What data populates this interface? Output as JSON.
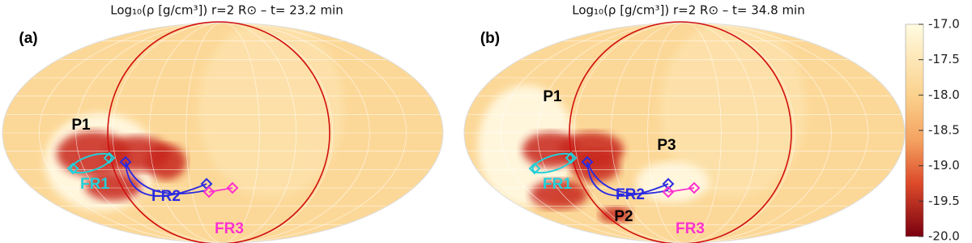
{
  "chart_data": {
    "type": "map",
    "panels": [
      {
        "title": "Log₁₀(ρ [g/cm³]) r=2 R⊙ – t= 23.2 min",
        "label": "(a)",
        "annotations": [
          {
            "text": "P1",
            "color": "#000000"
          },
          {
            "text": "FR1",
            "color": "#22d0d8"
          },
          {
            "text": "FR2",
            "color": "#2a2ae0"
          },
          {
            "text": "FR3",
            "color": "#ff30d0"
          }
        ]
      },
      {
        "title": "Log₁₀(ρ [g/cm³]) r=2 R⊙ – t= 34.8 min",
        "label": "(b)",
        "annotations": [
          {
            "text": "P1",
            "color": "#000000"
          },
          {
            "text": "P3",
            "color": "#000000"
          },
          {
            "text": "P2",
            "color": "#000000"
          },
          {
            "text": "FR1",
            "color": "#22d0d8"
          },
          {
            "text": "FR2",
            "color": "#2a2ae0"
          },
          {
            "text": "FR3",
            "color": "#ff30d0"
          }
        ]
      }
    ],
    "colorbar": {
      "clim": [
        -20,
        -17
      ],
      "ticks": [
        {
          "value": -17,
          "label": "-17.0"
        },
        {
          "value": -17.5,
          "label": "-17.5"
        },
        {
          "value": -18,
          "label": "-18.0"
        },
        {
          "value": -18.5,
          "label": "-18.5"
        },
        {
          "value": -19,
          "label": "-19.0"
        },
        {
          "value": -19.5,
          "label": "-19.5"
        },
        {
          "value": -20,
          "label": "-20.0"
        }
      ]
    }
  }
}
